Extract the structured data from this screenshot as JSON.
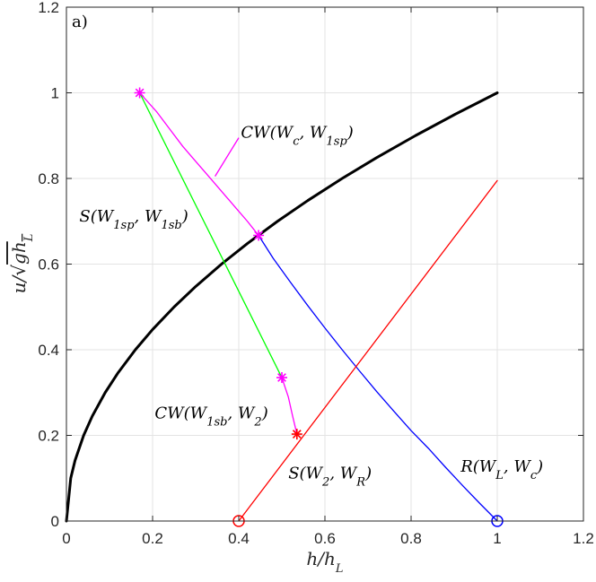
{
  "chart_data": {
    "type": "line",
    "panel_label": "a)",
    "xlabel": "h/h_L",
    "ylabel": "u/√(gh_L)",
    "xlim": [
      0,
      1.2
    ],
    "ylim": [
      0,
      1.2
    ],
    "xticks": [
      0,
      0.2,
      0.4,
      0.6,
      0.8,
      1,
      1.2
    ],
    "yticks": [
      0,
      0.2,
      0.4,
      0.6,
      0.8,
      1,
      1.2
    ],
    "xtick_labels": [
      "0",
      "0.2",
      "0.4",
      "0.6",
      "0.8",
      "1",
      "1.2"
    ],
    "ytick_labels": [
      "0",
      "0.2",
      "0.4",
      "0.6",
      "0.8",
      "1",
      "1.2"
    ],
    "grid": true,
    "series": [
      {
        "color": "#000000",
        "width": 3,
        "points": [
          [
            0,
            0
          ],
          [
            0.01,
            0.1
          ],
          [
            0.02,
            0.1414
          ],
          [
            0.04,
            0.2
          ],
          [
            0.06,
            0.2449
          ],
          [
            0.09,
            0.3
          ],
          [
            0.12,
            0.3464
          ],
          [
            0.16,
            0.4
          ],
          [
            0.2,
            0.4472
          ],
          [
            0.25,
            0.5
          ],
          [
            0.3,
            0.5477
          ],
          [
            0.36,
            0.6
          ],
          [
            0.42,
            0.6481
          ],
          [
            0.49,
            0.7
          ],
          [
            0.56,
            0.7483
          ],
          [
            0.64,
            0.8
          ],
          [
            0.72,
            0.8485
          ],
          [
            0.81,
            0.9
          ],
          [
            0.9,
            0.9487
          ],
          [
            1.0,
            1.0
          ]
        ]
      },
      {
        "color": "#0000ff",
        "width": 1.3,
        "points": [
          [
            1.0,
            0.0
          ],
          [
            0.96,
            0.0406
          ],
          [
            0.92,
            0.0824
          ],
          [
            0.88,
            0.1254
          ],
          [
            0.84,
            0.1699
          ],
          [
            0.8,
            0.2111
          ],
          [
            0.76,
            0.2564
          ],
          [
            0.72,
            0.3024
          ],
          [
            0.68,
            0.3508
          ],
          [
            0.64,
            0.4
          ],
          [
            0.6,
            0.4508
          ],
          [
            0.56,
            0.5033
          ],
          [
            0.52,
            0.5576
          ],
          [
            0.48,
            0.6134
          ],
          [
            0.446,
            0.667
          ]
        ]
      },
      {
        "color": "#ff00ff",
        "width": 1.3,
        "points": [
          [
            0.446,
            0.667
          ],
          [
            0.42,
            0.7
          ],
          [
            0.39,
            0.735
          ],
          [
            0.36,
            0.77
          ],
          [
            0.33,
            0.805
          ],
          [
            0.3,
            0.84
          ],
          [
            0.27,
            0.875
          ],
          [
            0.24,
            0.915
          ],
          [
            0.21,
            0.955
          ],
          [
            0.17,
            1.0
          ]
        ]
      },
      {
        "color": "#00ff00",
        "width": 1.3,
        "points": [
          [
            0.17,
            1.0
          ],
          [
            0.5,
            0.335
          ]
        ]
      },
      {
        "color": "#ff00ff",
        "width": 1.3,
        "points": [
          [
            0.5,
            0.335
          ],
          [
            0.515,
            0.29
          ],
          [
            0.525,
            0.245
          ],
          [
            0.535,
            0.203
          ]
        ]
      },
      {
        "color": "#ff0000",
        "width": 1.3,
        "points": [
          [
            0.4,
            0.0
          ],
          [
            1.0,
            0.795
          ]
        ]
      }
    ],
    "markers": [
      {
        "x": 0.17,
        "y": 1.0,
        "shape": "star",
        "color": "#ff00ff"
      },
      {
        "x": 0.446,
        "y": 0.667,
        "shape": "star",
        "color": "#ff00ff"
      },
      {
        "x": 0.5,
        "y": 0.335,
        "shape": "star",
        "color": "#ff00ff"
      },
      {
        "x": 0.535,
        "y": 0.203,
        "shape": "star",
        "color": "#ff0000"
      },
      {
        "x": 0.4,
        "y": 0.0,
        "shape": "circle",
        "color": "#ff0000"
      },
      {
        "x": 1.0,
        "y": 0.0,
        "shape": "circle",
        "color": "#0000ff"
      }
    ],
    "annotations": [
      {
        "name": "cw-wc-w1sp",
        "text": "CW(W_c, W_1sp)",
        "x": 0.405,
        "y": 0.895
      },
      {
        "name": "s-w1sp-w1sb",
        "text": "S(W_1sp, W_1sb)",
        "x": 0.03,
        "y": 0.7
      },
      {
        "name": "cw-w1sb-w2",
        "text": "CW(W_1sb, W_2)",
        "x": 0.205,
        "y": 0.24
      },
      {
        "name": "s-w2-wr",
        "text": "S(W_2, W_R)",
        "x": 0.515,
        "y": 0.1
      },
      {
        "name": "r-wl-wc",
        "text": "R(W_L, W_c)",
        "x": 0.915,
        "y": 0.115
      }
    ],
    "leader_line": {
      "from": [
        0.4,
        0.895
      ],
      "to": [
        0.345,
        0.805
      ],
      "color": "#ff00ff"
    }
  }
}
